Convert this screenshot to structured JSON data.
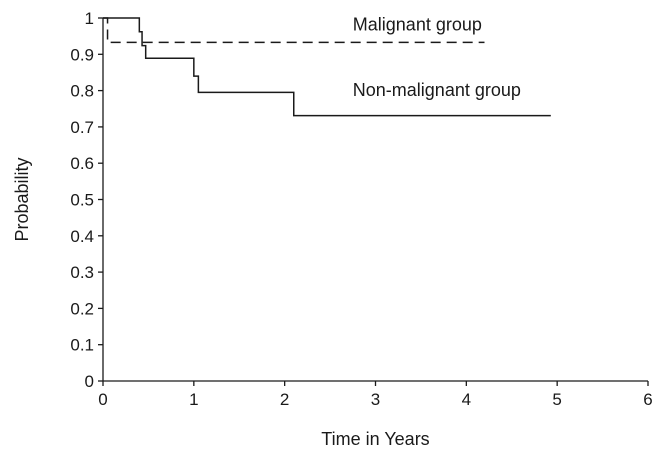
{
  "chart_data": {
    "type": "line",
    "title": "",
    "xlabel": "Time in Years",
    "ylabel": "Probability",
    "xlim": [
      0,
      6
    ],
    "ylim": [
      0,
      1
    ],
    "xticks": [
      "0",
      "1",
      "2",
      "3",
      "4",
      "5",
      "6"
    ],
    "yticks": [
      "0",
      "0.1",
      "0.2",
      "0.3",
      "0.4",
      "0.5",
      "0.6",
      "0.7",
      "0.8",
      "0.9",
      "1"
    ],
    "grid": false,
    "series": [
      {
        "name": "Malignant group",
        "style": "dashed",
        "color": "#1a1a1a",
        "step": true,
        "x": [
          0,
          0.05,
          0.05,
          4.2
        ],
        "y": [
          1,
          1,
          0.933,
          0.933
        ]
      },
      {
        "name": "Non-malignant group",
        "style": "solid",
        "color": "#1a1a1a",
        "step": true,
        "x": [
          0,
          0.4,
          0.43,
          0.47,
          1.0,
          1.05,
          2.1,
          4.93
        ],
        "y": [
          1,
          0.962,
          0.924,
          0.889,
          0.84,
          0.795,
          0.731,
          0.731
        ]
      }
    ],
    "annotations": [
      {
        "text": "Malignant group",
        "series": 0,
        "x": 2.75,
        "y": 0.965
      },
      {
        "text": "Non-malignant group",
        "series": 1,
        "x": 2.75,
        "y": 0.785
      }
    ]
  }
}
